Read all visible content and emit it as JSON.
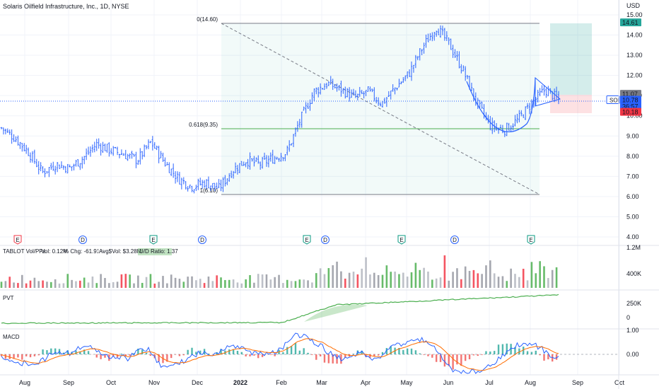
{
  "header": {
    "title": "Solaris Oilfield Infrastructure, Inc., 1D, NYSE",
    "currency": "USD"
  },
  "colors": {
    "up": "#089981",
    "down": "#f23645",
    "candle": "#2962ff",
    "grid": "#f0f3fa",
    "volume_up": "#4caf50",
    "volume_down": "#b2b5be",
    "fib_line": "#4caf50",
    "macd_line": "#2962ff",
    "signal_line": "#ff6d00",
    "pvt_line": "#4caf50"
  },
  "chart_data": [
    {
      "type": "candlestick",
      "name": "SOI",
      "price_axis": {
        "ticks": [
          "15.00",
          "14.00",
          "13.00",
          "12.00",
          "11.00",
          "10.00",
          "9.00",
          "8.00",
          "7.00",
          "6.00",
          "5.00",
          "4.00"
        ],
        "ylim": [
          3.6,
          15.4
        ]
      },
      "time_axis": {
        "ticks": [
          "Aug",
          "Sep",
          "Oct",
          "Nov",
          "Dec",
          "2022",
          "Feb",
          "Mar",
          "Apr",
          "May",
          "Jun",
          "Jul",
          "Aug",
          "Sep",
          "Oct"
        ]
      },
      "price_labels": [
        {
          "label": "14.61",
          "value": 14.61,
          "color": "#26a69a"
        },
        {
          "label": "11.07",
          "value": 11.07,
          "color": "#787b86"
        },
        {
          "label": "10.78",
          "value": 10.78,
          "color": "#2962ff"
        },
        {
          "label": "36:57",
          "value": 10.5,
          "color": "#2962ff"
        },
        {
          "label": "10.18",
          "value": 10.18,
          "color": "#f23645"
        }
      ],
      "symbol_label": "SOI",
      "fib_labels": [
        {
          "label": "0(14.60)",
          "value": 14.6
        },
        {
          "label": "0.618(9.35)",
          "value": 9.35
        },
        {
          "label": "1(6.10)",
          "value": 6.1
        }
      ],
      "close_path": [
        {
          "x": "Jul 19",
          "y": 9.4
        },
        {
          "x": "Jul 30",
          "y": 8.9
        },
        {
          "x": "Aug 9",
          "y": 8.2
        },
        {
          "x": "Aug 20",
          "y": 7.2
        },
        {
          "x": "Aug 31",
          "y": 7.6
        },
        {
          "x": "Sep 10",
          "y": 7.4
        },
        {
          "x": "Sep 20",
          "y": 7.9
        },
        {
          "x": "Sep 29",
          "y": 8.6
        },
        {
          "x": "Oct 8",
          "y": 8.3
        },
        {
          "x": "Oct 18",
          "y": 8.1
        },
        {
          "x": "Oct 29",
          "y": 7.8
        },
        {
          "x": "Nov 8",
          "y": 8.7
        },
        {
          "x": "Nov 18",
          "y": 7.7
        },
        {
          "x": "Nov 30",
          "y": 6.9
        },
        {
          "x": "Dec 10",
          "y": 6.5
        },
        {
          "x": "Dec 20",
          "y": 6.7
        },
        {
          "x": "Dec 29",
          "y": 6.4
        },
        {
          "x": "Jan 7",
          "y": 7.3
        },
        {
          "x": "Jan 17",
          "y": 7.8
        },
        {
          "x": "Jan 27",
          "y": 7.6
        },
        {
          "x": "Feb 7",
          "y": 7.9
        },
        {
          "x": "Feb 17",
          "y": 8.2
        },
        {
          "x": "Feb 28",
          "y": 9.8
        },
        {
          "x": "Mar 10",
          "y": 11.2
        },
        {
          "x": "Mar 18",
          "y": 11.6
        },
        {
          "x": "Mar 28",
          "y": 11.3
        },
        {
          "x": "Apr 7",
          "y": 10.9
        },
        {
          "x": "Apr 18",
          "y": 11.2
        },
        {
          "x": "Apr 27",
          "y": 10.6
        },
        {
          "x": "May 6",
          "y": 11.4
        },
        {
          "x": "May 16",
          "y": 12.1
        },
        {
          "x": "May 25",
          "y": 13.4
        },
        {
          "x": "Jun 3",
          "y": 14.4
        },
        {
          "x": "Jun 10",
          "y": 13.5
        },
        {
          "x": "Jun 17",
          "y": 12.2
        },
        {
          "x": "Jun 27",
          "y": 10.6
        },
        {
          "x": "Jul 7",
          "y": 9.5
        },
        {
          "x": "Jul 15",
          "y": 9.3
        },
        {
          "x": "Jul 25",
          "y": 9.8
        },
        {
          "x": "Aug 3",
          "y": 10.6
        },
        {
          "x": "Aug 11",
          "y": 11.3
        },
        {
          "x": "Aug 19",
          "y": 10.8
        }
      ],
      "event_markers": [
        {
          "label": "E",
          "type": "earnings-negative"
        },
        {
          "label": "D",
          "type": "dividend"
        },
        {
          "label": "E",
          "type": "earnings"
        },
        {
          "label": "D",
          "type": "dividend"
        },
        {
          "label": "E",
          "type": "earnings"
        },
        {
          "label": "D",
          "type": "dividend"
        },
        {
          "label": "E",
          "type": "earnings"
        },
        {
          "label": "D",
          "type": "dividend"
        },
        {
          "label": "E",
          "type": "earnings"
        }
      ]
    },
    {
      "type": "bar",
      "name": "TABLOT Vol/PPs",
      "legend_text": "TABLOT Vol/PPs",
      "stats": [
        "Vol: 0.12M",
        "% Chg: -61.91%",
        "Avg$Vol: $3.28M",
        "U/D Ratio: 1.37"
      ],
      "axis_ticks": [
        "1.2M",
        "400K"
      ]
    },
    {
      "type": "line",
      "name": "PVT",
      "legend_text": "PVT",
      "axis_ticks": [
        "250K",
        "0"
      ]
    },
    {
      "type": "line",
      "name": "MACD",
      "legend_text": "MACD",
      "axis_ticks": [
        "1.00",
        "0.00"
      ]
    }
  ]
}
